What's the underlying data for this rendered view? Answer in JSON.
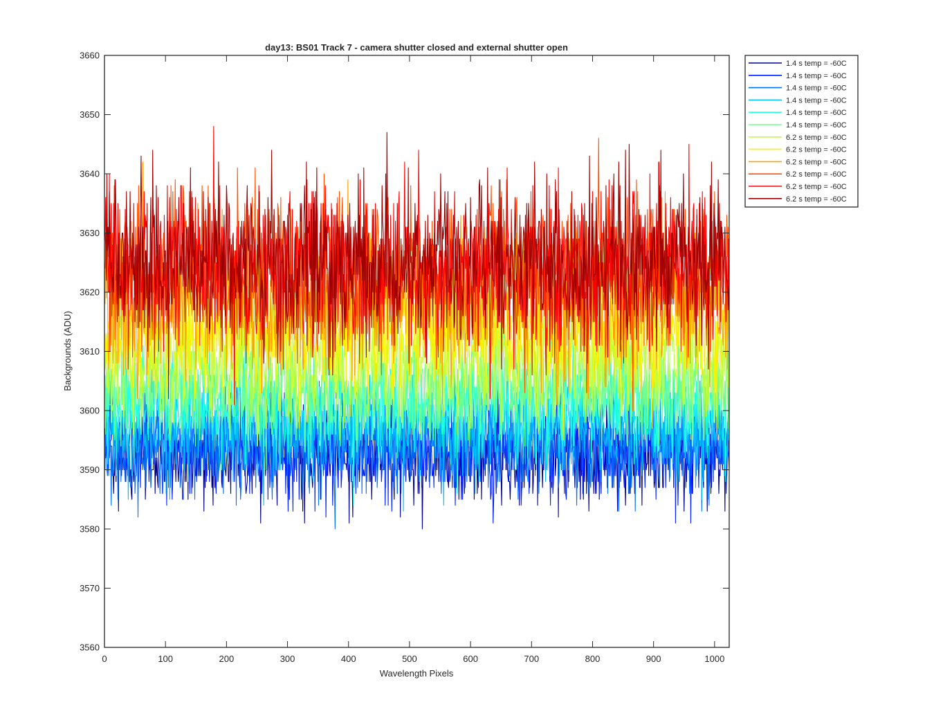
{
  "chart_data": {
    "type": "line",
    "title": "day13: BS01  Track 7 - camera shutter closed and external shutter open",
    "xlabel": "Wavelength Pixels",
    "ylabel": "Backgrounds (ADU)",
    "xlim": [
      0,
      1024
    ],
    "ylim": [
      3560,
      3660
    ],
    "x_ticks": [
      0,
      100,
      200,
      300,
      400,
      500,
      600,
      700,
      800,
      900,
      1000
    ],
    "y_ticks": [
      3560,
      3570,
      3580,
      3590,
      3600,
      3610,
      3620,
      3630,
      3640,
      3650,
      3660
    ],
    "grid": false,
    "legend_position": "outside-top-right",
    "x": {
      "start": 1,
      "end": 1024,
      "step": 1
    },
    "series": [
      {
        "name": "1.4 s temp = -60C",
        "color": "#00008f",
        "mean": 3593.0,
        "spread": 4.2,
        "min": 3569,
        "max": 3603
      },
      {
        "name": "1.4 s temp = -60C",
        "color": "#0020ff",
        "mean": 3593.6,
        "spread": 4.2,
        "min": 3576,
        "max": 3604
      },
      {
        "name": "1.4 s temp = -60C",
        "color": "#0070ff",
        "mean": 3594.2,
        "spread": 4.2,
        "min": 3576,
        "max": 3605
      },
      {
        "name": "1.4 s temp = -60C",
        "color": "#00bfff",
        "mean": 3597.5,
        "spread": 4.3,
        "min": 3578,
        "max": 3609
      },
      {
        "name": "1.4 s temp = -60C",
        "color": "#20ffdf",
        "mean": 3601.5,
        "spread": 4.4,
        "min": 3580,
        "max": 3613
      },
      {
        "name": "1.4 s temp = -60C",
        "color": "#70ff8f",
        "mean": 3603.5,
        "spread": 4.5,
        "min": 3583,
        "max": 3648
      },
      {
        "name": "6.2 s temp = -60C",
        "color": "#bfff40",
        "mean": 3608.5,
        "spread": 5.2,
        "min": 3590,
        "max": 3647
      },
      {
        "name": "6.2 s temp = -60C",
        "color": "#ffef00",
        "mean": 3614.0,
        "spread": 5.8,
        "min": 3595,
        "max": 3650
      },
      {
        "name": "6.2 s temp = -60C",
        "color": "#ffa000",
        "mean": 3619.0,
        "spread": 6.4,
        "min": 3598,
        "max": 3653
      },
      {
        "name": "6.2 s temp = -60C",
        "color": "#ff5000",
        "mean": 3623.5,
        "spread": 6.8,
        "min": 3600,
        "max": 3656
      },
      {
        "name": "6.2 s temp = -60C",
        "color": "#ff0000",
        "mean": 3624.0,
        "spread": 6.8,
        "min": 3601,
        "max": 3654
      },
      {
        "name": "6.2 s temp = -60C",
        "color": "#9f0000",
        "mean": 3625.0,
        "spread": 6.9,
        "min": 3602,
        "max": 3656
      }
    ]
  }
}
